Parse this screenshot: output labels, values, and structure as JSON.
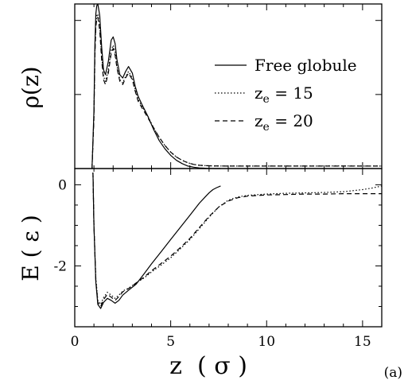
{
  "panel_label": "(a)",
  "chart_data": [
    {
      "type": "line",
      "panel": "top",
      "ylabel": "ρ(z)",
      "xlim": [
        0,
        16
      ],
      "ylim": [
        0,
        1.0
      ],
      "yticks_labeled": false,
      "legend_placement": "top-right",
      "legend": [
        {
          "label": "Free globule",
          "style": "solid"
        },
        {
          "label": "z_e = 15",
          "label_base": "z",
          "label_sub": "e",
          "label_rest": " = 15",
          "style": "dotted"
        },
        {
          "label": "z_e = 20",
          "label_base": "z",
          "label_sub": "e",
          "label_rest": " = 20",
          "style": "dashed"
        }
      ],
      "series": [
        {
          "name": "Free globule",
          "style": "solid",
          "x": [
            0.9,
            1.0,
            1.05,
            1.1,
            1.15,
            1.2,
            1.3,
            1.4,
            1.5,
            1.6,
            1.75,
            1.9,
            2.0,
            2.1,
            2.2,
            2.35,
            2.5,
            2.65,
            2.8,
            3.0,
            3.15,
            3.3,
            3.5,
            3.8,
            4.1,
            4.4,
            4.7,
            5.0,
            5.3,
            5.6,
            5.9,
            6.2,
            6.5,
            6.8,
            7.0,
            7.3,
            7.6
          ],
          "y": [
            0.0,
            0.35,
            0.75,
            0.94,
            0.99,
            1.0,
            0.93,
            0.74,
            0.6,
            0.57,
            0.65,
            0.78,
            0.8,
            0.76,
            0.66,
            0.57,
            0.55,
            0.59,
            0.62,
            0.58,
            0.5,
            0.44,
            0.39,
            0.32,
            0.24,
            0.17,
            0.12,
            0.08,
            0.05,
            0.03,
            0.015,
            0.008,
            0.004,
            0.002,
            0.001,
            0.0,
            0.0
          ]
        },
        {
          "name": "z_e = 15",
          "style": "dotted",
          "x": [
            0.9,
            1.0,
            1.05,
            1.1,
            1.15,
            1.2,
            1.3,
            1.4,
            1.5,
            1.6,
            1.75,
            1.9,
            2.0,
            2.1,
            2.2,
            2.35,
            2.5,
            2.65,
            2.8,
            3.0,
            3.15,
            3.3,
            3.5,
            3.8,
            4.1,
            4.4,
            4.7,
            5.0,
            5.3,
            5.6,
            5.9,
            6.2,
            6.5,
            6.8,
            7.2,
            8.0,
            9.0,
            10.0,
            12.0,
            14.0,
            15.0,
            16.0
          ],
          "y": [
            0.0,
            0.32,
            0.7,
            0.88,
            0.93,
            0.94,
            0.86,
            0.68,
            0.56,
            0.53,
            0.6,
            0.72,
            0.75,
            0.71,
            0.62,
            0.54,
            0.52,
            0.56,
            0.59,
            0.55,
            0.48,
            0.42,
            0.38,
            0.32,
            0.25,
            0.19,
            0.14,
            0.1,
            0.07,
            0.05,
            0.035,
            0.025,
            0.02,
            0.018,
            0.016,
            0.015,
            0.015,
            0.015,
            0.015,
            0.016,
            0.015,
            0.015
          ]
        },
        {
          "name": "z_e = 20",
          "style": "dashed",
          "x": [
            0.9,
            1.0,
            1.05,
            1.1,
            1.15,
            1.2,
            1.3,
            1.4,
            1.5,
            1.6,
            1.75,
            1.9,
            2.0,
            2.1,
            2.2,
            2.35,
            2.5,
            2.65,
            2.8,
            3.0,
            3.15,
            3.3,
            3.5,
            3.8,
            4.1,
            4.4,
            4.7,
            5.0,
            5.3,
            5.6,
            5.9,
            6.2,
            6.5,
            6.8,
            7.2,
            8.0,
            9.0,
            10.0,
            12.0,
            14.0,
            15.0,
            16.0
          ],
          "y": [
            0.0,
            0.3,
            0.68,
            0.86,
            0.91,
            0.92,
            0.84,
            0.66,
            0.54,
            0.51,
            0.58,
            0.7,
            0.73,
            0.69,
            0.61,
            0.53,
            0.51,
            0.55,
            0.58,
            0.54,
            0.47,
            0.41,
            0.37,
            0.31,
            0.25,
            0.19,
            0.14,
            0.1,
            0.07,
            0.05,
            0.035,
            0.025,
            0.02,
            0.018,
            0.016,
            0.015,
            0.015,
            0.015,
            0.015,
            0.015,
            0.015,
            0.015
          ]
        }
      ]
    },
    {
      "type": "line",
      "panel": "bottom",
      "xlabel": "z  ( σ )",
      "ylabel": "E ( ε )",
      "xlim": [
        0,
        16
      ],
      "ylim": [
        -3.5,
        0.4
      ],
      "xticks": [
        0,
        5,
        10,
        15
      ],
      "yticks": [
        -2,
        0
      ],
      "series": [
        {
          "name": "Free globule",
          "style": "solid",
          "x": [
            0.95,
            1.0,
            1.1,
            1.2,
            1.35,
            1.5,
            1.7,
            1.9,
            2.1,
            2.3,
            2.5,
            2.8,
            3.2,
            3.6,
            4.0,
            4.5,
            5.0,
            5.5,
            6.0,
            6.5,
            6.8,
            7.0,
            7.2,
            7.4,
            7.6
          ],
          "y": [
            0.3,
            -1.0,
            -2.4,
            -2.95,
            -3.05,
            -2.9,
            -2.8,
            -2.85,
            -2.92,
            -2.85,
            -2.72,
            -2.6,
            -2.45,
            -2.2,
            -1.95,
            -1.65,
            -1.35,
            -1.05,
            -0.75,
            -0.45,
            -0.3,
            -0.2,
            -0.12,
            -0.07,
            -0.03
          ]
        },
        {
          "name": "z_e = 15",
          "style": "dotted",
          "x": [
            0.95,
            1.0,
            1.1,
            1.2,
            1.35,
            1.5,
            1.7,
            1.9,
            2.1,
            2.3,
            2.5,
            2.8,
            3.2,
            3.6,
            4.0,
            4.5,
            5.0,
            5.5,
            6.0,
            6.5,
            7.0,
            7.5,
            8.0,
            8.5,
            9.0,
            10.0,
            11.0,
            12.0,
            13.0,
            14.0,
            15.0,
            15.5,
            16.0
          ],
          "y": [
            0.3,
            -1.0,
            -2.3,
            -2.85,
            -2.95,
            -2.78,
            -2.65,
            -2.72,
            -2.8,
            -2.72,
            -2.62,
            -2.55,
            -2.42,
            -2.3,
            -2.15,
            -1.98,
            -1.8,
            -1.58,
            -1.35,
            -1.08,
            -0.8,
            -0.55,
            -0.38,
            -0.3,
            -0.26,
            -0.23,
            -0.21,
            -0.2,
            -0.19,
            -0.17,
            -0.12,
            -0.08,
            -0.03
          ]
        },
        {
          "name": "z_e = 20",
          "style": "dashed",
          "x": [
            0.95,
            1.0,
            1.1,
            1.2,
            1.35,
            1.5,
            1.7,
            1.9,
            2.1,
            2.3,
            2.5,
            2.8,
            3.2,
            3.6,
            4.0,
            4.5,
            5.0,
            5.5,
            6.0,
            6.5,
            7.0,
            7.5,
            8.0,
            8.5,
            9.0,
            10.0,
            11.0,
            12.0,
            13.0,
            14.0,
            15.0,
            16.0
          ],
          "y": [
            0.3,
            -1.0,
            -2.35,
            -2.9,
            -3.0,
            -2.83,
            -2.7,
            -2.77,
            -2.85,
            -2.76,
            -2.64,
            -2.56,
            -2.42,
            -2.28,
            -2.12,
            -1.94,
            -1.76,
            -1.55,
            -1.32,
            -1.05,
            -0.78,
            -0.55,
            -0.4,
            -0.32,
            -0.28,
            -0.25,
            -0.24,
            -0.23,
            -0.23,
            -0.22,
            -0.22,
            -0.22
          ]
        }
      ]
    }
  ],
  "colors": {
    "line": "#000000",
    "background": "#ffffff"
  }
}
